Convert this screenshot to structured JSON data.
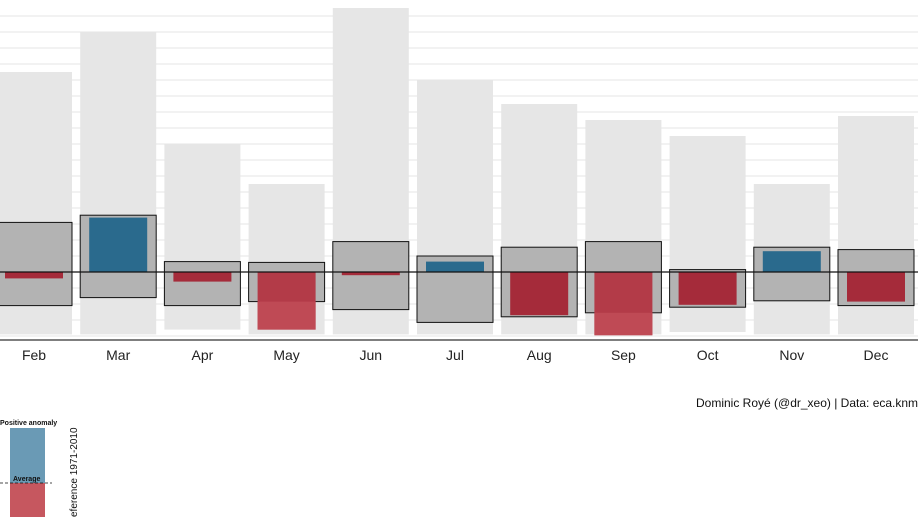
{
  "chart_data": {
    "type": "bar",
    "categories": [
      "Feb",
      "Mar",
      "Apr",
      "May",
      "Jun",
      "Jul",
      "Aug",
      "Sep",
      "Oct",
      "Nov",
      "Dec"
    ],
    "series": [
      {
        "key": "record_max",
        "values": [
          2.5,
          3.0,
          1.6,
          1.1,
          3.3,
          2.4,
          2.1,
          1.9,
          1.7,
          1.1,
          1.95
        ]
      },
      {
        "key": "record_min",
        "values": [
          -0.78,
          -0.78,
          -0.72,
          -0.78,
          -0.78,
          -0.78,
          -0.78,
          -0.78,
          -0.75,
          -0.78,
          -0.78
        ]
      },
      {
        "key": "p_upper",
        "values": [
          0.62,
          0.71,
          0.13,
          0.12,
          0.38,
          0.2,
          0.31,
          0.38,
          0.03,
          0.31,
          0.28
        ]
      },
      {
        "key": "p_lower",
        "values": [
          -0.42,
          -0.32,
          -0.42,
          -0.37,
          -0.47,
          -0.63,
          -0.56,
          -0.51,
          -0.44,
          -0.36,
          -0.42
        ]
      },
      {
        "key": "anomaly",
        "values": [
          -0.08,
          0.68,
          -0.12,
          -0.72,
          -0.04,
          0.13,
          -0.54,
          -0.79,
          -0.41,
          0.26,
          -0.37
        ]
      }
    ],
    "ylim": [
      -0.8,
      3.4
    ],
    "grid": true,
    "colors": {
      "record": "#e6e6e6",
      "percentile_box": "#b3b3b3",
      "positive": "#2a6a8d",
      "negative": "#a52b3a",
      "positive_light": "#6a9ab5",
      "negative_light": "#c6575f"
    }
  },
  "caption": "Dominic Royé (@dr_xeo) | Data: eca.knmi.",
  "legend": {
    "title_top": "Positive anomaly",
    "average_label": "Average",
    "side_label": "eference 1971-2010"
  }
}
